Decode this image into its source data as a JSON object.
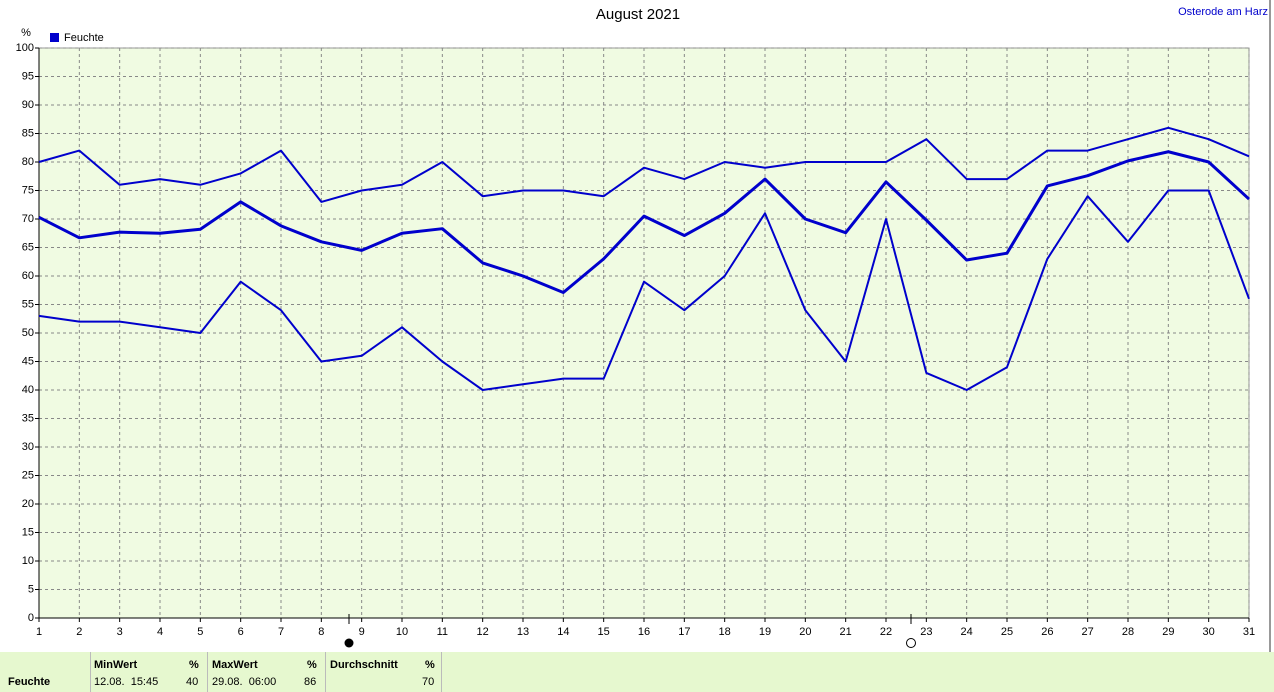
{
  "chart_data": {
    "type": "line",
    "title": "August 2021",
    "station": "Osterode am Harz",
    "y_unit": "%",
    "legend": "Feuchte",
    "x": [
      1,
      2,
      3,
      4,
      5,
      6,
      7,
      8,
      9,
      10,
      11,
      12,
      13,
      14,
      15,
      16,
      17,
      18,
      19,
      20,
      21,
      22,
      23,
      24,
      25,
      26,
      27,
      28,
      29,
      30,
      31
    ],
    "xlim": [
      1,
      31
    ],
    "xticks": [
      1,
      2,
      3,
      4,
      5,
      6,
      7,
      8,
      9,
      10,
      11,
      12,
      13,
      14,
      15,
      16,
      17,
      18,
      19,
      20,
      21,
      22,
      23,
      24,
      25,
      26,
      27,
      28,
      29,
      30,
      31
    ],
    "ylim": [
      0,
      100
    ],
    "yticks": [
      0,
      5,
      10,
      15,
      20,
      25,
      30,
      35,
      40,
      45,
      50,
      55,
      60,
      65,
      70,
      75,
      80,
      85,
      90,
      95,
      100
    ],
    "grid": true,
    "series": [
      {
        "color": "#0000cc",
        "values": [
          80,
          82,
          76,
          77,
          76,
          78,
          82,
          73,
          75,
          76,
          80,
          74,
          75,
          75,
          74,
          79,
          77,
          80,
          79,
          80,
          80,
          80,
          84,
          77,
          77,
          82,
          82,
          84,
          86,
          84,
          81
        ]
      },
      {
        "color": "#0000cc",
        "values": [
          70.3,
          66.7,
          67.7,
          67.5,
          68.2,
          73,
          68.8,
          66,
          64.5,
          67.5,
          68.3,
          62.3,
          60,
          57.1,
          63,
          70.5,
          67.1,
          71,
          77,
          70,
          67.6,
          76.5,
          69.8,
          62.8,
          64,
          75.8,
          77.6,
          80.2,
          81.8,
          80,
          73.5
        ]
      },
      {
        "color": "#0000cc",
        "values": [
          53,
          52,
          52,
          51,
          50,
          59,
          54,
          45,
          46,
          51,
          45,
          40,
          41,
          42,
          42,
          59,
          54,
          60,
          71,
          54,
          45,
          70,
          43,
          40,
          44,
          63,
          74,
          66,
          75,
          75,
          56
        ]
      }
    ]
  },
  "summary": {
    "row": "Feuchte",
    "min": {
      "label": "MinWert",
      "unit": "%",
      "time": "12.08.  15:45",
      "value": "40"
    },
    "max": {
      "label": "MaxWert",
      "unit": "%",
      "time": "29.08.  06:00",
      "value": "86"
    },
    "avg": {
      "label": "Durchschnitt",
      "unit": "%",
      "value": "70"
    }
  }
}
